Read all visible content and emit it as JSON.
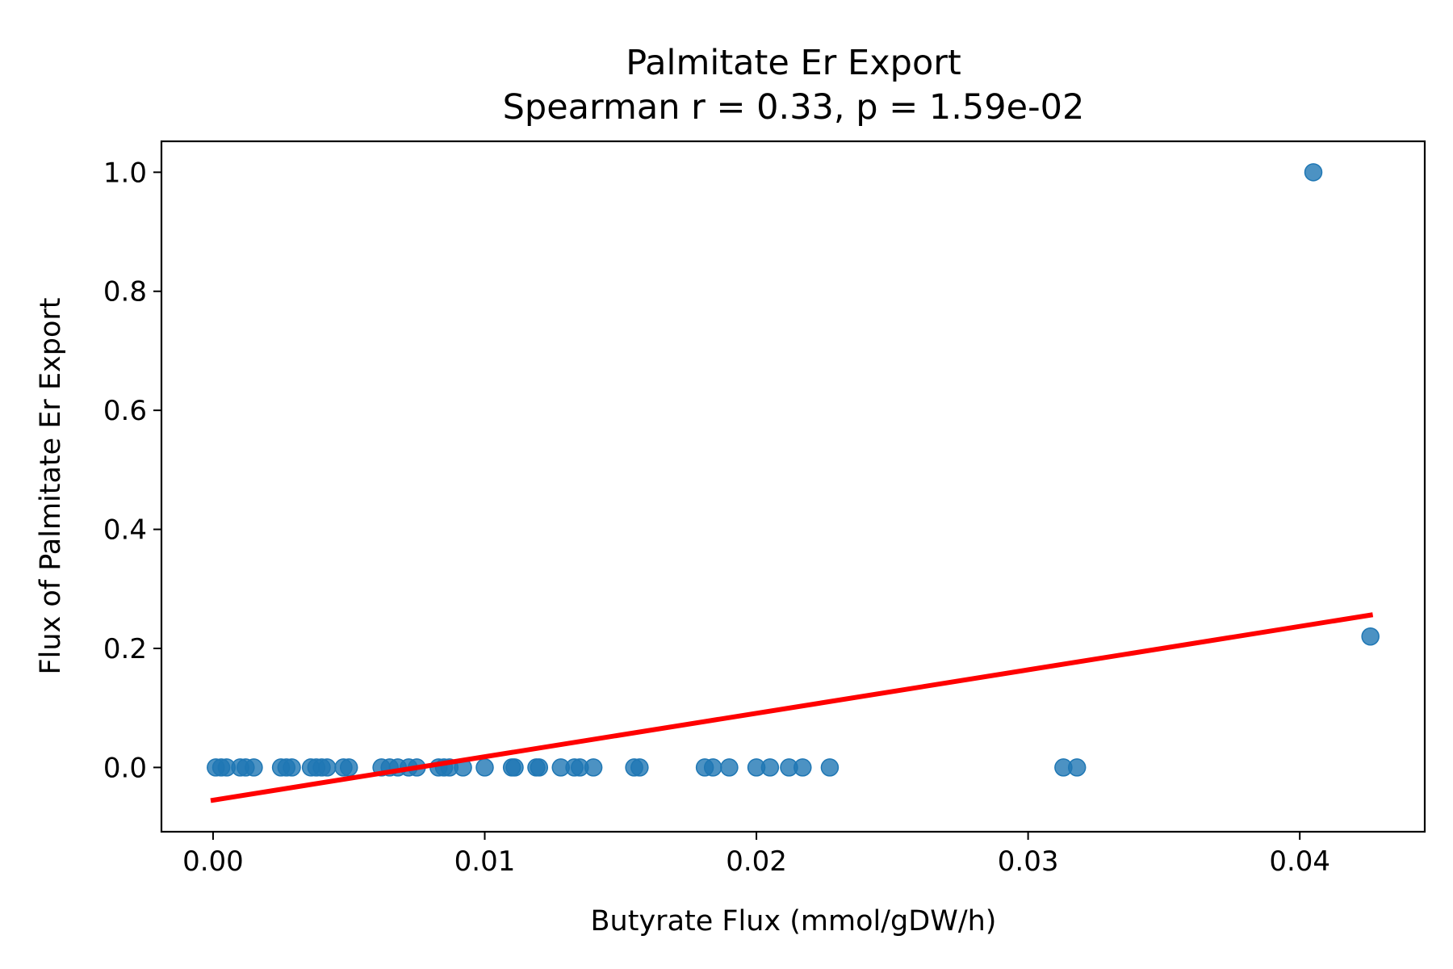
{
  "chart_data": {
    "type": "scatter",
    "title": "Palmitate Er Export",
    "subtitle": "Spearman r = 0.33, p = 1.59e-02",
    "xlabel": "Butyrate Flux (mmol/gDW/h)",
    "ylabel": "Flux of Palmitate Er Export",
    "xlim": [
      -0.0019,
      0.0446
    ],
    "ylim": [
      -0.108,
      1.052
    ],
    "xticks": [
      0.0,
      0.01,
      0.02,
      0.03,
      0.04
    ],
    "xtick_labels": [
      "0.00",
      "0.01",
      "0.02",
      "0.03",
      "0.04"
    ],
    "yticks": [
      0.0,
      0.2,
      0.4,
      0.6,
      0.8,
      1.0
    ],
    "ytick_labels": [
      "0.0",
      "0.2",
      "0.4",
      "0.6",
      "0.8",
      "1.0"
    ],
    "grid": false,
    "legend": "none",
    "series": [
      {
        "color": "#1f77b4",
        "points": [
          {
            "x": 0.0001,
            "y": 0.0
          },
          {
            "x": 0.0003,
            "y": 0.0
          },
          {
            "x": 0.0005,
            "y": 0.0
          },
          {
            "x": 0.001,
            "y": 0.0
          },
          {
            "x": 0.0012,
            "y": 0.0
          },
          {
            "x": 0.0015,
            "y": 0.0
          },
          {
            "x": 0.0025,
            "y": 0.0
          },
          {
            "x": 0.0027,
            "y": 0.0
          },
          {
            "x": 0.0029,
            "y": 0.0
          },
          {
            "x": 0.0036,
            "y": 0.0
          },
          {
            "x": 0.0038,
            "y": 0.0
          },
          {
            "x": 0.004,
            "y": 0.0
          },
          {
            "x": 0.0042,
            "y": 0.0
          },
          {
            "x": 0.0048,
            "y": 0.0
          },
          {
            "x": 0.005,
            "y": 0.0
          },
          {
            "x": 0.0062,
            "y": 0.0
          },
          {
            "x": 0.0065,
            "y": 0.0
          },
          {
            "x": 0.0068,
            "y": 0.0
          },
          {
            "x": 0.0072,
            "y": 0.0
          },
          {
            "x": 0.0075,
            "y": 0.0
          },
          {
            "x": 0.0083,
            "y": 0.0
          },
          {
            "x": 0.0085,
            "y": 0.0
          },
          {
            "x": 0.0087,
            "y": 0.0
          },
          {
            "x": 0.0092,
            "y": 0.0
          },
          {
            "x": 0.01,
            "y": 0.0
          },
          {
            "x": 0.011,
            "y": 0.0
          },
          {
            "x": 0.0111,
            "y": 0.0
          },
          {
            "x": 0.0119,
            "y": 0.0
          },
          {
            "x": 0.012,
            "y": 0.0
          },
          {
            "x": 0.0128,
            "y": 0.0
          },
          {
            "x": 0.0133,
            "y": 0.0
          },
          {
            "x": 0.0135,
            "y": 0.0
          },
          {
            "x": 0.014,
            "y": 0.0
          },
          {
            "x": 0.0155,
            "y": 0.0
          },
          {
            "x": 0.0157,
            "y": 0.0
          },
          {
            "x": 0.0181,
            "y": 0.0
          },
          {
            "x": 0.0184,
            "y": 0.0
          },
          {
            "x": 0.019,
            "y": 0.0
          },
          {
            "x": 0.02,
            "y": 0.0
          },
          {
            "x": 0.0205,
            "y": 0.0
          },
          {
            "x": 0.0212,
            "y": 0.0
          },
          {
            "x": 0.0217,
            "y": 0.0
          },
          {
            "x": 0.0227,
            "y": 0.0
          },
          {
            "x": 0.0313,
            "y": 0.0
          },
          {
            "x": 0.0318,
            "y": 0.0
          },
          {
            "x": 0.0405,
            "y": 1.0
          },
          {
            "x": 0.0426,
            "y": 0.22
          }
        ]
      }
    ],
    "fit_line": {
      "color": "#ff0000",
      "x": [
        0.0,
        0.0426
      ],
      "y": [
        -0.055,
        0.256
      ]
    }
  }
}
